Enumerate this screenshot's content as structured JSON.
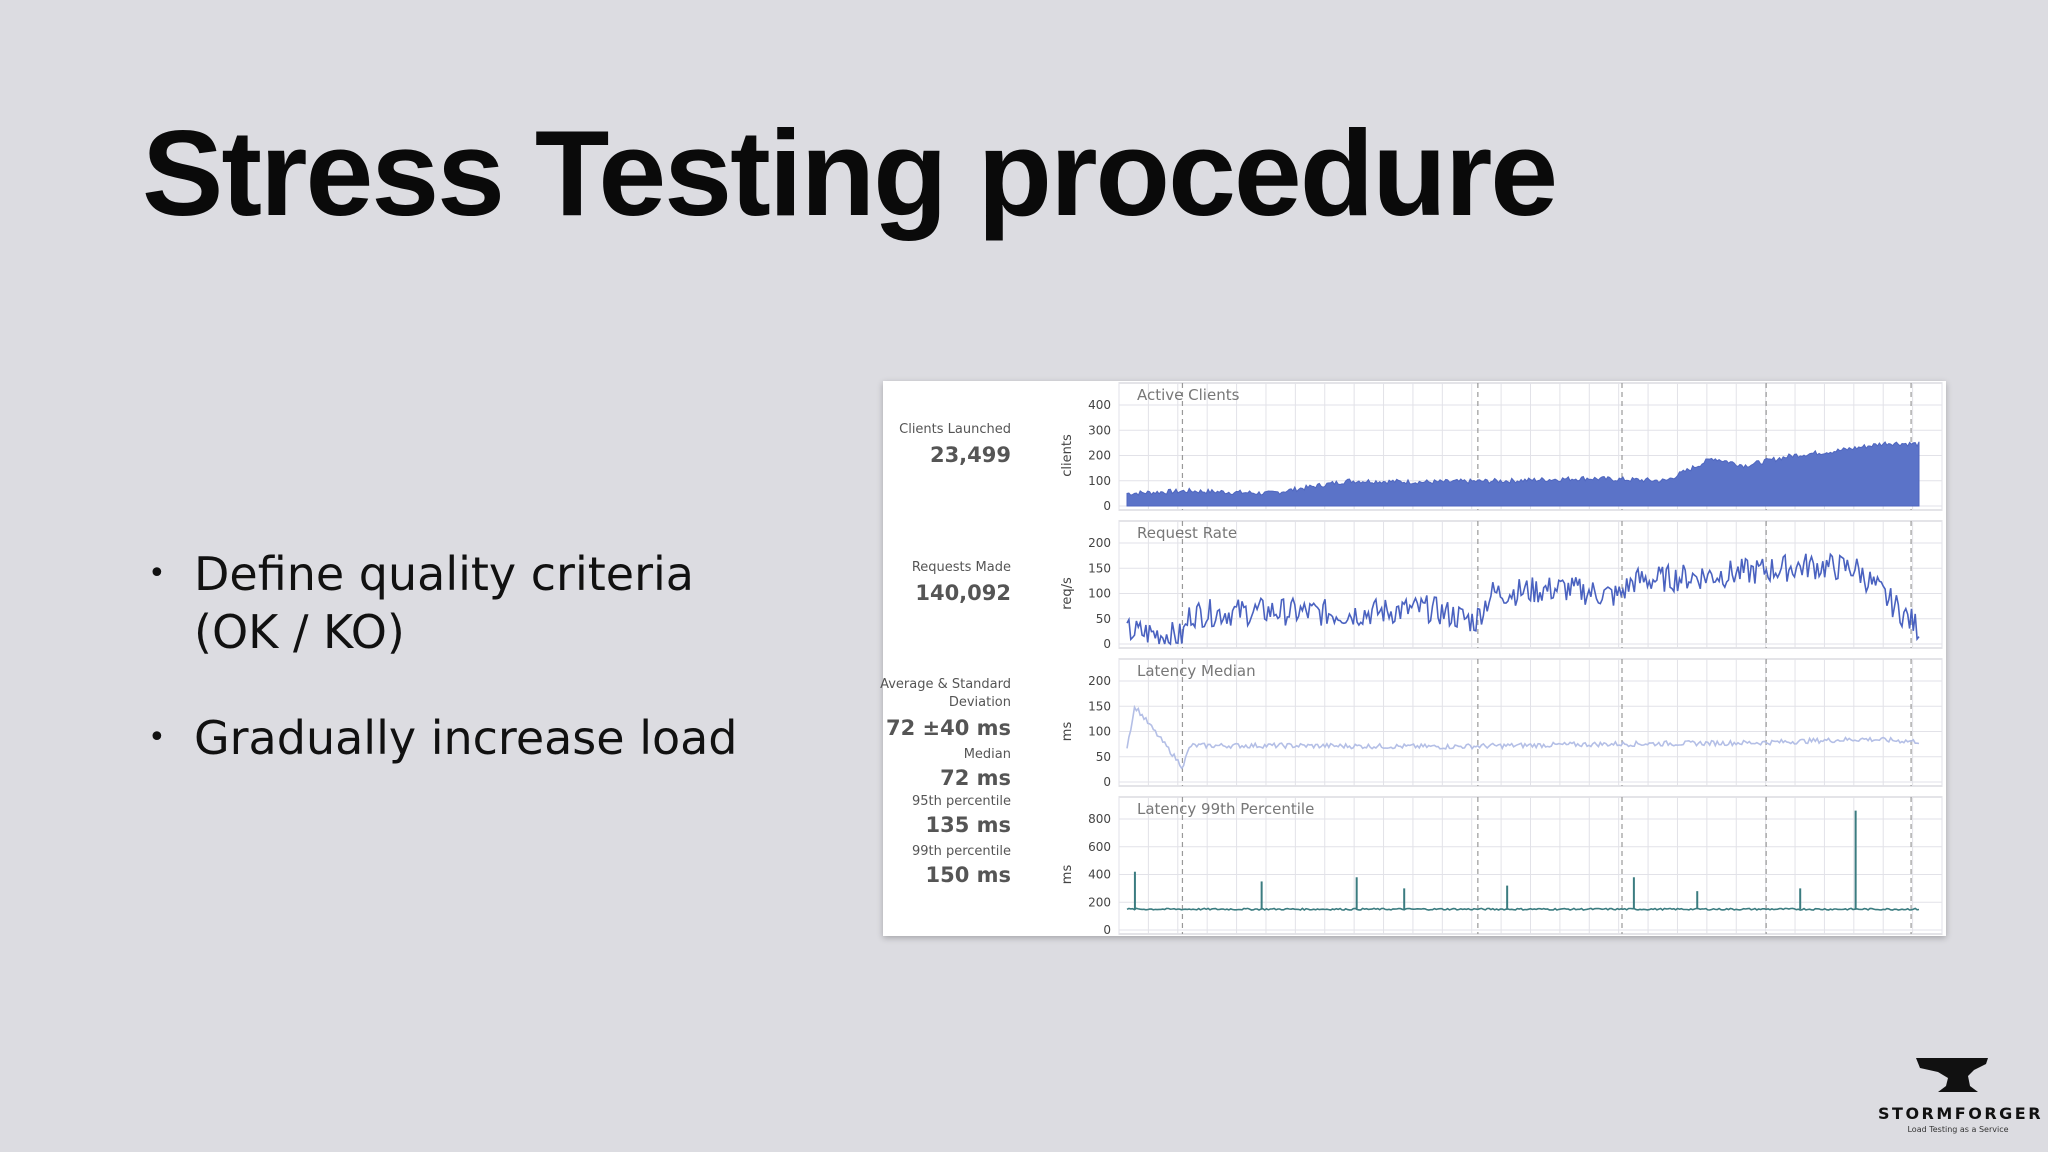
{
  "slide": {
    "title": "Stress Testing procedure",
    "bullets": [
      {
        "lines": [
          "Define quality criteria",
          "(OK / KO)"
        ]
      },
      {
        "lines": [
          "Gradually increase load"
        ]
      }
    ]
  },
  "dashboard": {
    "stats": {
      "clients_launched_label": "Clients Launched",
      "clients_launched_value": "23,499",
      "requests_made_label": "Requests Made",
      "requests_made_value": "140,092",
      "avg_std_label": "Average & Standard Deviation",
      "avg_std_value": "72 ±40 ms",
      "median_label": "Median",
      "median_value": "72 ms",
      "p95_label": "95th percentile",
      "p95_value": "135 ms",
      "p99_label": "99th percentile",
      "p99_value": "150 ms"
    }
  },
  "chart_data": [
    {
      "type": "area",
      "title": "Active Clients",
      "ylabel": "clients",
      "ylim": [
        0,
        400
      ],
      "yticks": [
        0,
        100,
        200,
        300,
        400
      ],
      "color": "#5b73c8",
      "x": [
        0,
        8,
        18,
        28,
        38,
        48,
        58,
        68,
        74,
        78,
        84,
        90,
        96,
        100
      ],
      "y": [
        50,
        60,
        50,
        100,
        95,
        100,
        110,
        100,
        190,
        160,
        200,
        220,
        250,
        245
      ]
    },
    {
      "type": "line",
      "title": "Request Rate",
      "ylabel": "req/s",
      "ylim": [
        0,
        200
      ],
      "yticks": [
        0,
        50,
        100,
        150,
        200
      ],
      "color": "#4a62c0",
      "x": [
        0,
        7,
        8,
        18,
        28,
        38,
        44,
        46,
        55,
        62,
        64,
        73,
        80,
        86,
        92,
        100
      ],
      "y": [
        25,
        15,
        60,
        65,
        60,
        70,
        45,
        100,
        110,
        95,
        125,
        135,
        145,
        155,
        150,
        30
      ]
    },
    {
      "type": "line",
      "title": "Latency Median",
      "ylabel": "ms",
      "ylim": [
        0,
        200
      ],
      "yticks": [
        0,
        50,
        100,
        150,
        200
      ],
      "color": "#b4bfe6",
      "x": [
        0,
        1,
        7,
        8,
        20,
        40,
        60,
        80,
        93,
        100
      ],
      "y": [
        70,
        150,
        30,
        72,
        72,
        70,
        75,
        78,
        85,
        80
      ]
    },
    {
      "type": "line",
      "title": "Latency 99th Percentile",
      "ylabel": "ms",
      "ylim": [
        0,
        800
      ],
      "yticks": [
        0,
        200,
        400,
        600,
        800
      ],
      "color": "#3b7c80",
      "x": [
        0,
        1,
        7,
        17,
        29,
        35,
        48,
        64,
        72,
        85,
        92,
        100
      ],
      "y": [
        150,
        420,
        100,
        350,
        380,
        300,
        320,
        380,
        280,
        300,
        880,
        150
      ]
    }
  ],
  "logo": {
    "name": "STORMFORGER",
    "tagline": "Load Testing as a Service",
    "icon": "anvil-icon"
  }
}
